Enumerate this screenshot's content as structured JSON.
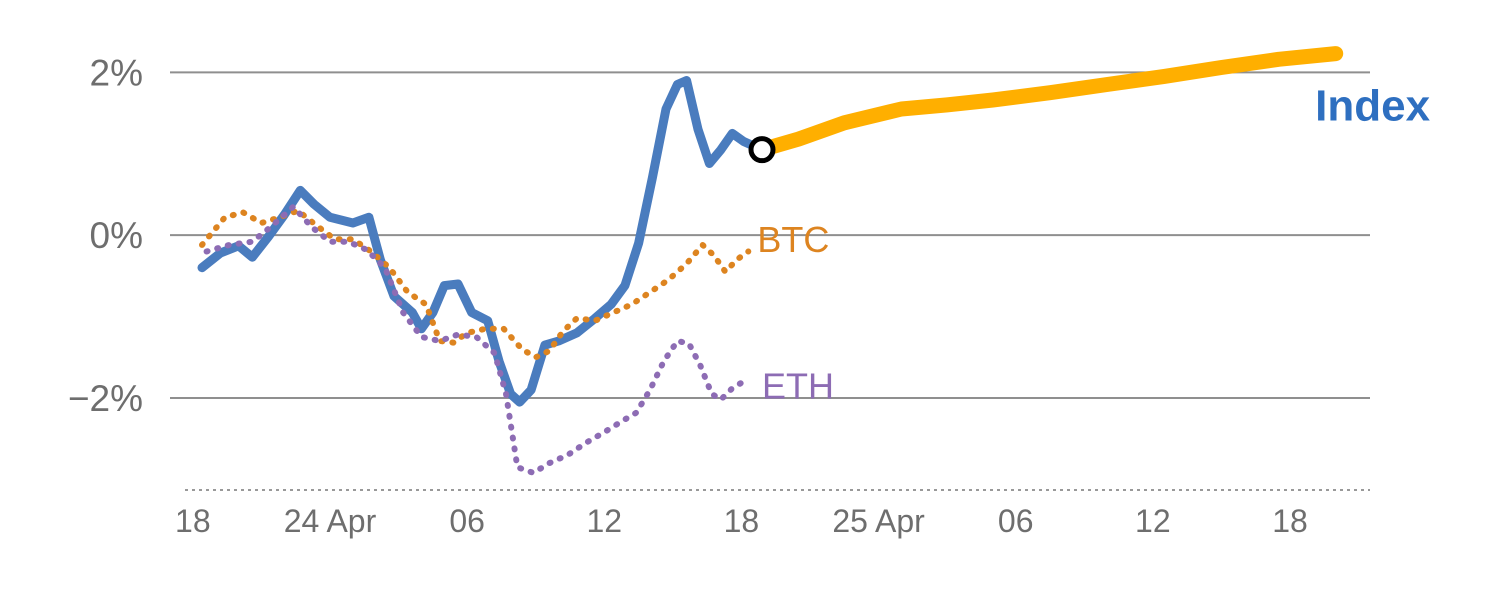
{
  "chart_data": {
    "type": "line",
    "title": "",
    "grid": true,
    "legend_position": "inline-labels",
    "x_axis": {
      "unit": "time (6h ticks)",
      "ticks": [
        {
          "t": 0,
          "label": "18"
        },
        {
          "t": 6,
          "label": "24 Apr"
        },
        {
          "t": 12,
          "label": "06"
        },
        {
          "t": 18,
          "label": "12"
        },
        {
          "t": 24,
          "label": "18"
        },
        {
          "t": 30,
          "label": "25 Apr"
        },
        {
          "t": 36,
          "label": "06"
        },
        {
          "t": 42,
          "label": "12"
        },
        {
          "t": 48,
          "label": "18"
        }
      ]
    },
    "y_axis": {
      "unit": "%",
      "ticks": [
        {
          "v": 2,
          "label": "2%"
        },
        {
          "v": 0,
          "label": "0%"
        },
        {
          "v": -2,
          "label": "−2%"
        }
      ],
      "ylim": [
        -3.13,
        2.52
      ]
    },
    "series": [
      {
        "id": "index-history",
        "name": "Index (history)",
        "label": "",
        "color": "#4a7cbe",
        "style": "solid",
        "width": 9,
        "points": [
          [
            0.4,
            -0.4
          ],
          [
            1.2,
            -0.22
          ],
          [
            2,
            -0.13
          ],
          [
            2.6,
            -0.27
          ],
          [
            3.3,
            -0.02
          ],
          [
            4,
            0.25
          ],
          [
            4.7,
            0.55
          ],
          [
            5.3,
            0.38
          ],
          [
            6,
            0.22
          ],
          [
            7,
            0.15
          ],
          [
            7.7,
            0.22
          ],
          [
            8.2,
            -0.3
          ],
          [
            8.8,
            -0.75
          ],
          [
            9.6,
            -0.95
          ],
          [
            10,
            -1.15
          ],
          [
            10.5,
            -0.95
          ],
          [
            11,
            -0.62
          ],
          [
            11.6,
            -0.6
          ],
          [
            12.2,
            -0.95
          ],
          [
            12.9,
            -1.05
          ],
          [
            13.4,
            -1.55
          ],
          [
            13.9,
            -1.95
          ],
          [
            14.3,
            -2.05
          ],
          [
            14.8,
            -1.9
          ],
          [
            15.4,
            -1.35
          ],
          [
            16,
            -1.3
          ],
          [
            16.8,
            -1.2
          ],
          [
            17.6,
            -1.02
          ],
          [
            18.3,
            -0.85
          ],
          [
            18.9,
            -0.62
          ],
          [
            19.5,
            -0.1
          ],
          [
            20.1,
            0.7
          ],
          [
            20.7,
            1.55
          ],
          [
            21.2,
            1.85
          ],
          [
            21.6,
            1.9
          ],
          [
            22.1,
            1.3
          ],
          [
            22.6,
            0.88
          ],
          [
            23.1,
            1.05
          ],
          [
            23.6,
            1.25
          ],
          [
            24.1,
            1.15
          ],
          [
            24.9,
            1.05
          ]
        ]
      },
      {
        "id": "index-forecast",
        "name": "Index (forecast)",
        "label": "Index",
        "label_color": "#2e6fc0",
        "label_bold": true,
        "label_size": 44,
        "label_at": [
          49.1,
          1.6
        ],
        "color": "#ffaf00",
        "style": "solid",
        "width": 15,
        "points": [
          [
            24.9,
            1.05
          ],
          [
            26.5,
            1.18
          ],
          [
            28.5,
            1.38
          ],
          [
            31,
            1.55
          ],
          [
            33,
            1.6
          ],
          [
            35,
            1.66
          ],
          [
            37.5,
            1.75
          ],
          [
            40,
            1.85
          ],
          [
            42.5,
            1.95
          ],
          [
            45,
            2.06
          ],
          [
            47.5,
            2.16
          ],
          [
            50,
            2.23
          ]
        ]
      },
      {
        "id": "btc",
        "name": "BTC",
        "label": "BTC",
        "label_color": "#dd8420",
        "label_bold": false,
        "label_size": 36,
        "label_at": [
          24.7,
          -0.05
        ],
        "color": "#dd8420",
        "style": "dotted",
        "width": 6,
        "points": [
          [
            0.4,
            -0.12
          ],
          [
            1.4,
            0.22
          ],
          [
            2.2,
            0.28
          ],
          [
            3,
            0.15
          ],
          [
            3.8,
            0.22
          ],
          [
            4.6,
            0.3
          ],
          [
            5.4,
            0.12
          ],
          [
            6.2,
            -0.05
          ],
          [
            7,
            -0.05
          ],
          [
            7.8,
            -0.2
          ],
          [
            8.6,
            -0.4
          ],
          [
            9.4,
            -0.7
          ],
          [
            10.2,
            -0.85
          ],
          [
            10.8,
            -1.3
          ],
          [
            11.4,
            -1.32
          ],
          [
            12,
            -1.2
          ],
          [
            12.8,
            -1.15
          ],
          [
            13.6,
            -1.15
          ],
          [
            14.4,
            -1.4
          ],
          [
            15,
            -1.5
          ],
          [
            15.6,
            -1.42
          ],
          [
            16.2,
            -1.18
          ],
          [
            16.8,
            -1.02
          ],
          [
            17.6,
            -1.05
          ],
          [
            18.4,
            -0.95
          ],
          [
            19.2,
            -0.85
          ],
          [
            20,
            -0.7
          ],
          [
            20.8,
            -0.55
          ],
          [
            21.6,
            -0.35
          ],
          [
            22.3,
            -0.12
          ],
          [
            22.8,
            -0.25
          ],
          [
            23.3,
            -0.45
          ],
          [
            23.8,
            -0.3
          ],
          [
            24.3,
            -0.2
          ]
        ]
      },
      {
        "id": "eth",
        "name": "ETH",
        "label": "ETH",
        "label_color": "#8d6cb4",
        "label_bold": false,
        "label_size": 36,
        "label_at": [
          24.9,
          -1.85
        ],
        "color": "#8d6cb4",
        "style": "dotted",
        "width": 6,
        "points": [
          [
            0.6,
            -0.2
          ],
          [
            1.6,
            -0.12
          ],
          [
            2.6,
            -0.08
          ],
          [
            3.4,
            0.1
          ],
          [
            4.4,
            0.35
          ],
          [
            5.2,
            0.1
          ],
          [
            6,
            -0.08
          ],
          [
            6.8,
            -0.08
          ],
          [
            7.6,
            -0.18
          ],
          [
            8.4,
            -0.4
          ],
          [
            9.2,
            -0.95
          ],
          [
            10,
            -1.25
          ],
          [
            10.8,
            -1.3
          ],
          [
            11.6,
            -1.22
          ],
          [
            12.4,
            -1.25
          ],
          [
            13.2,
            -1.45
          ],
          [
            13.7,
            -1.95
          ],
          [
            14.2,
            -2.85
          ],
          [
            14.9,
            -2.92
          ],
          [
            15.6,
            -2.8
          ],
          [
            16.4,
            -2.7
          ],
          [
            17.2,
            -2.55
          ],
          [
            18,
            -2.42
          ],
          [
            18.8,
            -2.28
          ],
          [
            19.4,
            -2.18
          ],
          [
            20,
            -1.9
          ],
          [
            20.6,
            -1.55
          ],
          [
            21.2,
            -1.3
          ],
          [
            21.7,
            -1.33
          ],
          [
            22.2,
            -1.6
          ],
          [
            22.7,
            -1.95
          ],
          [
            23.1,
            -2.02
          ],
          [
            23.6,
            -1.88
          ],
          [
            24.2,
            -1.78
          ]
        ]
      }
    ],
    "marker": {
      "name": "forecast-start-marker",
      "t": 24.9,
      "v": 1.05,
      "style": "open-circle",
      "fill": "#ffffff",
      "ring_color": "#000000"
    },
    "axis_colors": {
      "gridline": "#8f8f8f",
      "tick_label": "#6e6e6e",
      "bottom_axis": "#999999"
    }
  }
}
